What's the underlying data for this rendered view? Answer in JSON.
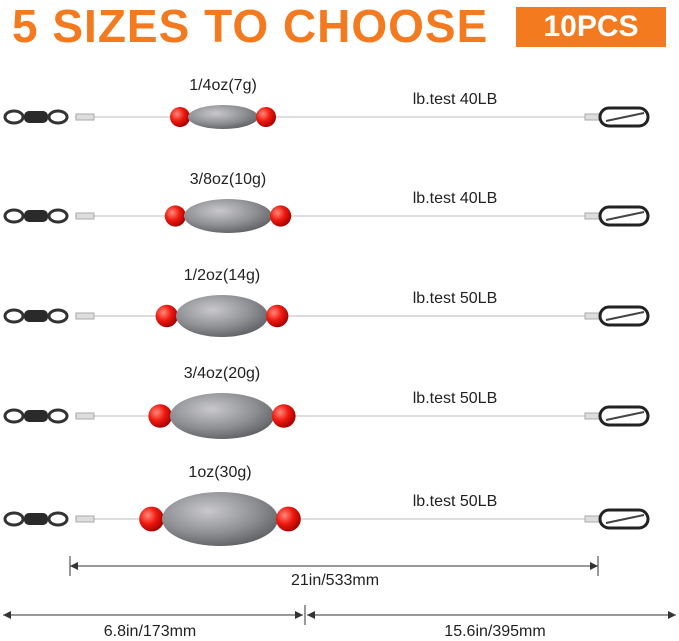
{
  "header": {
    "title": "5 SIZES TO CHOOSE",
    "badge": "10PCS"
  },
  "rigs": [
    {
      "weight": "1/4oz(7g)",
      "test": "lb.test 40LB"
    },
    {
      "weight": "3/8oz(10g)",
      "test": "lb.test 40LB"
    },
    {
      "weight": "1/2oz(14g)",
      "test": "lb.test 50LB"
    },
    {
      "weight": "3/4oz(20g)",
      "test": "lb.test 50LB"
    },
    {
      "weight": "1oz(30g)",
      "test": "lb.test 50LB"
    }
  ],
  "dimensions": {
    "total": "21in/533mm",
    "leader": "6.8in/173mm",
    "main": "15.6in/395mm"
  }
}
